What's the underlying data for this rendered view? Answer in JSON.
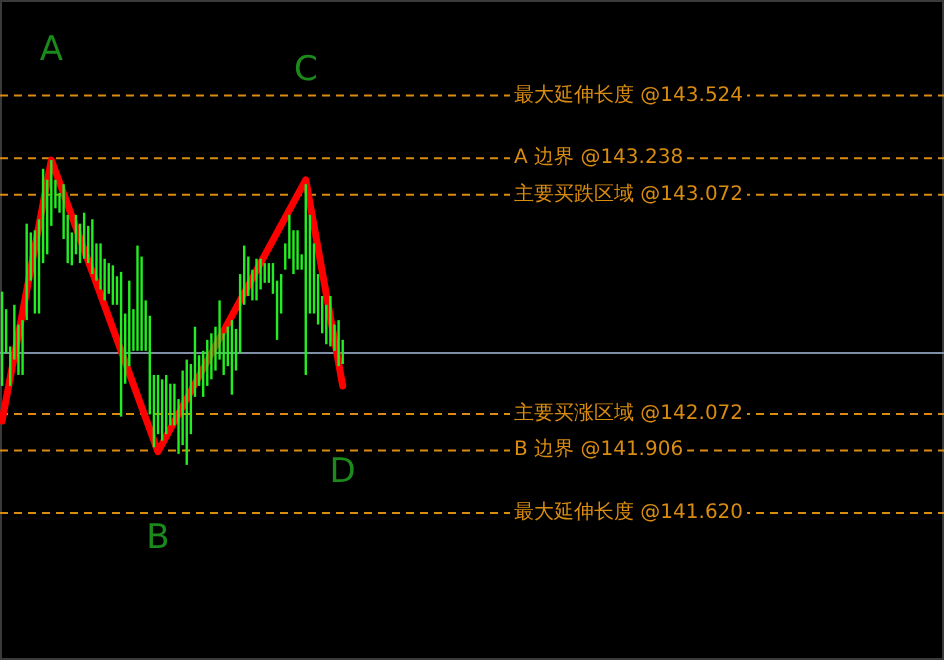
{
  "chart_data": {
    "type": "bar",
    "categories": [
      null,
      null,
      null,
      null,
      null,
      null,
      null,
      null,
      null,
      null,
      null,
      null,
      null,
      null,
      null,
      null,
      null,
      null,
      null,
      null,
      null,
      null,
      null,
      null,
      null,
      null,
      null,
      null,
      null,
      null,
      null,
      null,
      null,
      null,
      null,
      null,
      null,
      null,
      null,
      null,
      null,
      null,
      null,
      null,
      null,
      null,
      null,
      null,
      null,
      null,
      null,
      null,
      null,
      null,
      null,
      null,
      null,
      null,
      null,
      null,
      null,
      null,
      null,
      null,
      null,
      null,
      null,
      null,
      null,
      null,
      null,
      null,
      null,
      null,
      null,
      null,
      null,
      null,
      null,
      null,
      null,
      null,
      null,
      null,
      null,
      null,
      null,
      null,
      null,
      null,
      null,
      null,
      null,
      null,
      null,
      null,
      null,
      null,
      null,
      null,
      null,
      null,
      null,
      null,
      null,
      null,
      null,
      null,
      null,
      null,
      null,
      null,
      null,
      null,
      null,
      null,
      null,
      null,
      null,
      null,
      null,
      null,
      null,
      null,
      null,
      null,
      null,
      null,
      null,
      null,
      null,
      null,
      null,
      null,
      null,
      null,
      null,
      null,
      null,
      null,
      null,
      null,
      null,
      null,
      null,
      null,
      null,
      null,
      null,
      null,
      null,
      null,
      null,
      null,
      null,
      null,
      null,
      null,
      null,
      null,
      null,
      null,
      null,
      null,
      null,
      null,
      null,
      null,
      null,
      null,
      null,
      null,
      null,
      null,
      null,
      null,
      null,
      null,
      null,
      null,
      null,
      null,
      null,
      null,
      null,
      null,
      null,
      null,
      null,
      null,
      null,
      null,
      null,
      null,
      null,
      null,
      null,
      null,
      null,
      null,
      null,
      null,
      null,
      null,
      null,
      null,
      null,
      null,
      null,
      null,
      null,
      null,
      null,
      null,
      null,
      null,
      null,
      null,
      null,
      null,
      null,
      null,
      null,
      null,
      null,
      null,
      null,
      null,
      null,
      null
    ],
    "ylim": [
      140.95,
      143.96
    ],
    "yticks": [
      {
        "value": 143.524,
        "label": "最大延伸长度 @143.524"
      },
      {
        "value": 143.238,
        "label": "A 边界 @143.238"
      },
      {
        "value": 143.072,
        "label": "主要买跌区域 @143.072"
      },
      {
        "value": 142.072,
        "label": "主要买涨区域 @142.072"
      },
      {
        "value": 141.906,
        "label": "B 边界 @141.906"
      },
      {
        "value": 141.62,
        "label": "最大延伸长度 @141.620"
      }
    ],
    "grid": "y",
    "series": [
      {
        "color": "#22ee22",
        "base": [
          142.2,
          142.35,
          142.2,
          142.32,
          142.25,
          142.25,
          142.5,
          142.68,
          142.53,
          142.53,
          142.76,
          142.8,
          142.93,
          143.01,
          142.99,
          142.87,
          142.76,
          142.75,
          142.8,
          142.76,
          142.78,
          142.76,
          142.71,
          142.68,
          142.64,
          142.59,
          142.62,
          142.57,
          142.57,
          142.06,
          142.21,
          142.29,
          142.36,
          142.36,
          142.36,
          142.36,
          142.07,
          141.92,
          141.98,
          141.95,
          141.98,
          142.02,
          142.02,
          141.89,
          141.93,
          141.84,
          141.98,
          142.15,
          142.2,
          142.15,
          142.2,
          142.23,
          142.27,
          142.32,
          142.25,
          142.29,
          142.16,
          142.27,
          142.35,
          142.57,
          142.61,
          142.59,
          142.59,
          142.64,
          142.67,
          142.67,
          142.62,
          142.41,
          142.53,
          142.73,
          142.78,
          142.71,
          142.73,
          142.73,
          142.25,
          142.53,
          142.53,
          142.48,
          142.44,
          142.39,
          142.38,
          142.36,
          142.29,
          142.3,
          null,
          null,
          null,
          null,
          null,
          null,
          null,
          null,
          null,
          null,
          null,
          null,
          null,
          null,
          null,
          null,
          null,
          null,
          null,
          null,
          null,
          null,
          null,
          null,
          null,
          null,
          null,
          null,
          null,
          null,
          null,
          null,
          null,
          null,
          null,
          null,
          null,
          null,
          null,
          null,
          null,
          null,
          null,
          null,
          null,
          null,
          null,
          null,
          null,
          null,
          null,
          null,
          null,
          null,
          null,
          null,
          null,
          null,
          null,
          null,
          null,
          null,
          null,
          null,
          null,
          null,
          null,
          null,
          null,
          null,
          null,
          null,
          null,
          null,
          null,
          null,
          null,
          null,
          null,
          null,
          null,
          null,
          null,
          null,
          null,
          null,
          null,
          null,
          null,
          null,
          null,
          null,
          null,
          null,
          null,
          null,
          null,
          null,
          null,
          null,
          null,
          null,
          null,
          null,
          null,
          null,
          null,
          null,
          null,
          null,
          null,
          null,
          null,
          null,
          null,
          null,
          null,
          null,
          null,
          null,
          null,
          null,
          null,
          null,
          null,
          null,
          null,
          null,
          null,
          null,
          null,
          null,
          null,
          null,
          null,
          null,
          null,
          null,
          null,
          null,
          null,
          null,
          null,
          null,
          null,
          null
        ],
        "values": [
          0.43,
          0.2,
          0.18,
          0.25,
          0.23,
          0.25,
          0.44,
          0.22,
          0.38,
          0.43,
          0.43,
          0.34,
          0.3,
          0.13,
          0.09,
          0.25,
          0.22,
          0.15,
          0.18,
          0.18,
          0.21,
          0.17,
          0.25,
          0.17,
          0.21,
          0.19,
          0.14,
          0.18,
          0.13,
          0.66,
          0.32,
          0.39,
          0.19,
          0.48,
          0.43,
          0.23,
          0.45,
          0.33,
          0.27,
          0.28,
          0.27,
          0.19,
          0.19,
          0.25,
          0.34,
          0.48,
          0.32,
          0.32,
          0.14,
          0.21,
          0.21,
          0.21,
          0.2,
          0.27,
          0.19,
          0.18,
          0.34,
          0.19,
          0.36,
          0.27,
          0.18,
          0.14,
          0.19,
          0.14,
          0.09,
          0.09,
          0.14,
          0.27,
          0.18,
          0.12,
          0.2,
          0.2,
          0.18,
          0.07,
          0.87,
          0.45,
          0.32,
          0.23,
          0.17,
          0.18,
          0.23,
          0.12,
          0.21,
          0.11,
          null,
          null,
          null,
          null,
          null,
          null,
          null,
          null,
          null,
          null,
          null,
          null,
          null,
          null,
          null,
          null,
          null,
          null,
          null,
          null,
          null,
          null,
          null,
          null,
          null,
          null,
          null,
          null,
          null,
          null,
          null,
          null,
          null,
          null,
          null,
          null,
          null,
          null,
          null,
          null,
          null,
          null,
          null,
          null,
          null,
          null,
          null,
          null,
          null,
          null,
          null,
          null,
          null,
          null,
          null,
          null,
          null,
          null,
          null,
          null,
          null,
          null,
          null,
          null,
          null,
          null,
          null,
          null,
          null,
          null,
          null,
          null,
          null,
          null,
          null,
          null,
          null,
          null,
          null,
          null,
          null,
          null,
          null,
          null,
          null,
          null,
          null,
          null,
          null,
          null,
          null,
          null,
          null,
          null,
          null,
          null,
          null,
          null,
          null,
          null,
          null,
          null,
          null,
          null,
          null,
          null,
          null,
          null,
          null,
          null,
          null,
          null,
          null,
          null,
          null,
          null,
          null,
          null,
          null,
          null,
          null,
          null,
          null,
          null,
          null,
          null,
          null,
          null,
          null,
          null,
          null,
          null,
          null,
          null,
          null,
          null,
          null,
          null,
          null,
          null,
          null,
          null,
          null,
          null,
          null,
          null
        ]
      },
      {
        "type": "line",
        "color": "#ff0000",
        "line_style": "solid",
        "values": [
          142.04,
          null,
          null,
          null,
          null,
          null,
          null,
          null,
          null,
          null,
          null,
          null,
          143.23,
          null,
          null,
          null,
          null,
          null,
          null,
          null,
          null,
          null,
          null,
          null,
          null,
          null,
          null,
          null,
          null,
          null,
          null,
          null,
          null,
          null,
          null,
          null,
          null,
          null,
          141.9,
          null,
          null,
          null,
          null,
          null,
          null,
          null,
          null,
          null,
          null,
          null,
          null,
          null,
          null,
          null,
          null,
          null,
          null,
          null,
          null,
          null,
          null,
          null,
          null,
          null,
          null,
          null,
          null,
          null,
          null,
          null,
          null,
          null,
          null,
          null,
          143.14,
          null,
          null,
          null,
          null,
          null,
          null,
          null,
          null,
          142.2,
          null,
          null,
          null,
          null,
          null,
          null,
          null,
          null,
          null,
          null,
          null,
          null,
          null,
          null,
          null,
          null,
          null,
          null,
          null,
          null,
          null,
          null,
          null,
          null,
          null,
          null,
          null,
          null,
          null,
          null,
          null,
          null,
          null,
          null,
          null,
          null,
          null,
          null,
          null,
          null,
          null,
          null,
          null,
          null,
          null,
          null,
          null,
          null,
          null,
          null,
          null,
          null,
          null,
          null,
          null,
          null,
          null,
          null,
          null,
          null,
          null,
          null,
          null,
          null,
          null,
          null,
          null,
          null,
          null,
          null,
          null,
          null,
          null,
          null,
          null,
          null,
          null,
          null,
          null,
          null,
          null,
          null,
          null,
          null,
          null,
          null,
          null,
          null,
          null,
          null,
          null,
          null,
          null,
          null,
          null,
          null,
          null,
          null,
          null,
          null,
          null,
          null,
          null,
          null,
          null,
          null,
          null,
          null,
          null,
          null,
          null,
          null,
          null,
          null,
          null,
          null,
          null,
          null,
          null,
          null,
          null,
          null,
          null,
          null,
          null,
          null,
          null,
          null,
          null,
          null,
          null,
          null,
          null,
          null,
          null,
          null,
          null,
          null,
          null,
          null,
          null,
          null,
          null,
          null,
          null,
          null
        ]
      }
    ],
    "ref_lines": [
      {
        "axis": "y",
        "value": 142.35,
        "color": "#7f8fa6",
        "line_style": "solid"
      }
    ],
    "annotations": [
      "A",
      "B",
      "C",
      "D"
    ]
  }
}
